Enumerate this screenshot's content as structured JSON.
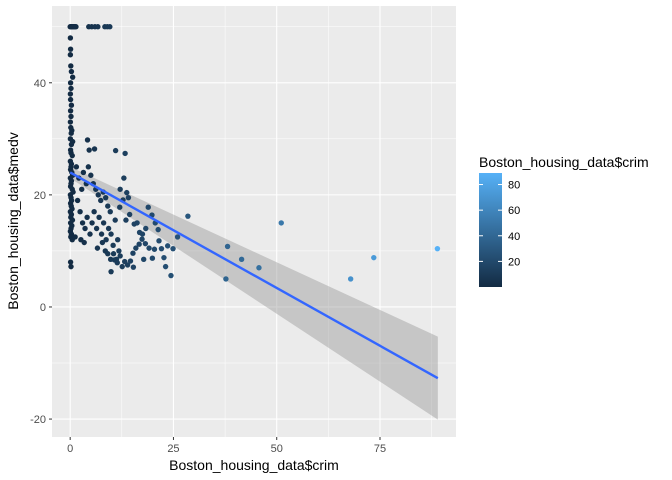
{
  "chart_data": {
    "type": "scatter",
    "xlabel": "Boston_housing_data$crim",
    "ylabel": "Boston_housing_data$medv",
    "xlim": [
      -4.4,
      93.4
    ],
    "ylim": [
      -23.2,
      53.7
    ],
    "x_ticks": [
      0,
      25,
      50,
      75
    ],
    "y_ticks": [
      -20,
      0,
      20,
      40
    ],
    "grid": true,
    "legend": {
      "title": "Boston_housing_data$crim",
      "placement": "right",
      "ticks": [
        20,
        40,
        60,
        80
      ],
      "range": [
        0.006,
        89
      ],
      "color_low": "#132B43",
      "color_high": "#56B1F7"
    },
    "colors": {
      "panel": "#ebebeb",
      "grid": "#ffffff",
      "line": "#3366ff",
      "ribbon": "#999999"
    },
    "trend": {
      "x": [
        0,
        89
      ],
      "y": [
        24,
        -12.7
      ],
      "ribbon_upper": [
        25,
        -5.3
      ],
      "ribbon_lower": [
        23,
        -20.1
      ]
    },
    "points": [
      [
        0.0,
        50
      ],
      [
        0.2,
        50
      ],
      [
        0.4,
        50
      ],
      [
        0.6,
        50
      ],
      [
        0.8,
        50
      ],
      [
        1.0,
        50
      ],
      [
        1.2,
        50
      ],
      [
        1.4,
        50
      ],
      [
        4.5,
        50
      ],
      [
        5.2,
        50
      ],
      [
        6.0,
        50
      ],
      [
        6.7,
        50
      ],
      [
        8.4,
        50
      ],
      [
        9.0,
        50
      ],
      [
        9.6,
        50
      ],
      [
        0.05,
        48
      ],
      [
        0.1,
        46
      ],
      [
        0.05,
        45
      ],
      [
        0.15,
        43
      ],
      [
        0.3,
        42
      ],
      [
        0.6,
        41
      ],
      [
        0.1,
        40
      ],
      [
        0.2,
        39
      ],
      [
        0.05,
        38
      ],
      [
        0.1,
        37
      ],
      [
        0.3,
        36
      ],
      [
        0.1,
        35
      ],
      [
        0.2,
        34
      ],
      [
        0.05,
        33
      ],
      [
        0.15,
        32
      ],
      [
        0.4,
        31.5
      ],
      [
        0.25,
        31
      ],
      [
        0.05,
        30
      ],
      [
        0.6,
        29.5
      ],
      [
        0.3,
        29
      ],
      [
        0.1,
        28
      ],
      [
        0.2,
        27.5
      ],
      [
        0.5,
        27
      ],
      [
        0.05,
        26
      ],
      [
        0.3,
        25.5
      ],
      [
        0.2,
        25
      ],
      [
        0.1,
        24.5
      ],
      [
        0.4,
        24
      ],
      [
        0.6,
        23.5
      ],
      [
        0.05,
        23
      ],
      [
        0.3,
        22.5
      ],
      [
        0.2,
        22
      ],
      [
        0.1,
        21.5
      ],
      [
        0.5,
        21
      ],
      [
        0.7,
        20.5
      ],
      [
        0.05,
        20
      ],
      [
        0.2,
        19.5
      ],
      [
        0.35,
        19
      ],
      [
        0.1,
        18.5
      ],
      [
        0.25,
        18
      ],
      [
        0.45,
        17.5
      ],
      [
        0.05,
        17
      ],
      [
        0.3,
        16.5
      ],
      [
        0.15,
        16
      ],
      [
        0.55,
        15.5
      ],
      [
        0.1,
        15
      ],
      [
        0.4,
        14.5
      ],
      [
        0.2,
        14
      ],
      [
        0.05,
        13.5
      ],
      [
        0.3,
        13
      ],
      [
        0.15,
        12.5
      ],
      [
        0.5,
        12
      ],
      [
        0.1,
        8
      ],
      [
        0.2,
        7.2
      ],
      [
        1.5,
        25
      ],
      [
        2.1,
        23
      ],
      [
        2.8,
        21
      ],
      [
        3.2,
        24
      ],
      [
        3.9,
        22
      ],
      [
        4.4,
        25
      ],
      [
        5.0,
        23.5
      ],
      [
        5.6,
        22
      ],
      [
        6.2,
        21
      ],
      [
        6.8,
        20
      ],
      [
        7.4,
        19
      ],
      [
        8.0,
        20.5
      ],
      [
        8.6,
        19.5
      ],
      [
        9.1,
        18
      ],
      [
        9.7,
        17
      ],
      [
        4.6,
        28
      ],
      [
        4.2,
        29.8
      ],
      [
        5.9,
        28.2
      ],
      [
        1.8,
        19
      ],
      [
        2.4,
        17
      ],
      [
        3.0,
        15
      ],
      [
        3.6,
        14
      ],
      [
        4.1,
        16
      ],
      [
        4.8,
        13
      ],
      [
        5.3,
        15
      ],
      [
        5.8,
        17
      ],
      [
        6.4,
        14
      ],
      [
        7.0,
        16
      ],
      [
        7.6,
        13
      ],
      [
        8.1,
        15
      ],
      [
        8.7,
        12
      ],
      [
        9.3,
        14
      ],
      [
        9.9,
        13
      ],
      [
        10.4,
        11
      ],
      [
        10.9,
        15.5
      ],
      [
        11.5,
        12
      ],
      [
        1.2,
        12.5
      ],
      [
        2.6,
        12
      ],
      [
        3.4,
        11.5
      ],
      [
        7.8,
        11.5
      ],
      [
        6.6,
        10.5
      ],
      [
        8.5,
        10
      ],
      [
        9.1,
        9.5
      ],
      [
        9.8,
        8.5
      ],
      [
        10.5,
        9.5
      ],
      [
        11.2,
        8.5
      ],
      [
        11.8,
        10
      ],
      [
        11.0,
        27.9
      ],
      [
        13.3,
        27.4
      ],
      [
        13.0,
        23
      ],
      [
        12.1,
        21
      ],
      [
        13.7,
        20.4
      ],
      [
        14.1,
        19.5
      ],
      [
        12.8,
        19.1
      ],
      [
        12.0,
        17.8
      ],
      [
        14.4,
        16.5
      ],
      [
        13.5,
        15.5
      ],
      [
        15.5,
        14.8
      ],
      [
        16.2,
        15
      ],
      [
        16.8,
        13.3
      ],
      [
        17.5,
        13
      ],
      [
        18.3,
        14
      ],
      [
        18.9,
        17.8
      ],
      [
        19.8,
        16.4
      ],
      [
        20.6,
        15
      ],
      [
        21.3,
        13.8
      ],
      [
        22.1,
        10.4
      ],
      [
        23.6,
        10.9
      ],
      [
        24.9,
        10.4
      ],
      [
        24.4,
        5.6
      ],
      [
        23.1,
        7.2
      ],
      [
        22.7,
        8.8
      ],
      [
        21.5,
        11.8
      ],
      [
        19.9,
        8.7
      ],
      [
        19.1,
        10.5
      ],
      [
        18.2,
        11.3
      ],
      [
        17.4,
        12.1
      ],
      [
        16.7,
        11.2
      ],
      [
        15.9,
        10.5
      ],
      [
        15.2,
        9.6
      ],
      [
        14.6,
        8.2
      ],
      [
        13.9,
        7.5
      ],
      [
        13.2,
        8.1
      ],
      [
        12.6,
        7.2
      ],
      [
        12.1,
        9.1
      ],
      [
        11.4,
        7.9
      ],
      [
        10.7,
        8.4
      ],
      [
        9.9,
        6.3
      ],
      [
        15.3,
        7.1
      ],
      [
        17.8,
        8.5
      ],
      [
        20.4,
        10.3
      ],
      [
        26.0,
        12.5
      ],
      [
        28.5,
        16.2
      ],
      [
        38.1,
        10.8
      ],
      [
        37.7,
        5.0
      ],
      [
        41.5,
        8.5
      ],
      [
        45.7,
        7.0
      ],
      [
        51.1,
        15.0
      ],
      [
        67.9,
        5.0
      ],
      [
        73.5,
        8.8
      ],
      [
        88.9,
        10.4
      ]
    ]
  }
}
